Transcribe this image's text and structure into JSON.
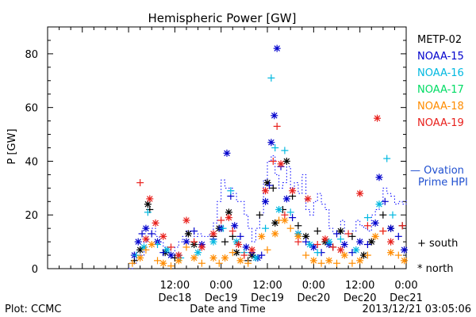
{
  "chart_data": {
    "type": "scatter",
    "title": "Hemispheric Power [GW]",
    "ylabel": "P [GW]",
    "xlabel": "Date and Time",
    "ylim": [
      0,
      90
    ],
    "yticks": [
      0,
      20,
      40,
      60,
      80
    ],
    "x_unit": "hours since 2013-12-17 00:00 UT",
    "xlim": [
      3,
      96
    ],
    "xticks": [
      {
        "x": 36,
        "time": "12:00",
        "day": "Dec18"
      },
      {
        "x": 48,
        "time": "0:00",
        "day": "Dec19"
      },
      {
        "x": 60,
        "time": "12:00",
        "day": "Dec19"
      },
      {
        "x": 72,
        "time": "0:00",
        "day": "Dec20"
      },
      {
        "x": 84,
        "time": "12:00",
        "day": "Dec20"
      },
      {
        "x": 96,
        "time": "0:00",
        "day": "Dec21"
      }
    ],
    "grid": false,
    "legend_position": "right",
    "series": [
      {
        "name": "METP-02",
        "color": "#000000",
        "points": [
          [
            25.5,
            3,
            "s"
          ],
          [
            27,
            7,
            "n"
          ],
          [
            29,
            24,
            "n"
          ],
          [
            29.5,
            22,
            "s"
          ],
          [
            33.5,
            6,
            "n"
          ],
          [
            36,
            4,
            "s"
          ],
          [
            39.5,
            13,
            "n"
          ],
          [
            41,
            9,
            "n"
          ],
          [
            46,
            12,
            "s"
          ],
          [
            47.5,
            15,
            "n"
          ],
          [
            49,
            10,
            "s"
          ],
          [
            50,
            21,
            "n"
          ],
          [
            51,
            12,
            "s"
          ],
          [
            52,
            6,
            "n"
          ],
          [
            55,
            3,
            "s"
          ],
          [
            56,
            5,
            "n"
          ],
          [
            58,
            20,
            "s"
          ],
          [
            60,
            32,
            "n"
          ],
          [
            61.5,
            30,
            "s"
          ],
          [
            62,
            17,
            "n"
          ],
          [
            64,
            22,
            "s"
          ],
          [
            65,
            40,
            "n"
          ],
          [
            66.5,
            27,
            "s"
          ],
          [
            68,
            16,
            "s"
          ],
          [
            70,
            12,
            "n"
          ],
          [
            73,
            14,
            "s"
          ],
          [
            75,
            10,
            "n"
          ],
          [
            77,
            8,
            "s"
          ],
          [
            79,
            14,
            "n"
          ],
          [
            82,
            12,
            "s"
          ],
          [
            85,
            5,
            "n"
          ],
          [
            87,
            10,
            "n"
          ],
          [
            90,
            20,
            "s"
          ],
          [
            92,
            15,
            "n"
          ],
          [
            95,
            16,
            "s"
          ]
        ]
      },
      {
        "name": "NOAA-15",
        "color": "#0000cc",
        "points": [
          [
            25.5,
            5,
            "n"
          ],
          [
            26.5,
            10,
            "n"
          ],
          [
            27.5,
            13,
            "s"
          ],
          [
            28.5,
            15,
            "n"
          ],
          [
            30,
            13,
            "s"
          ],
          [
            31.5,
            10,
            "n"
          ],
          [
            33,
            6,
            "s"
          ],
          [
            35,
            5,
            "n"
          ],
          [
            37,
            5,
            "s"
          ],
          [
            39,
            10,
            "n"
          ],
          [
            41,
            14,
            "s"
          ],
          [
            43,
            9,
            "n"
          ],
          [
            46,
            11,
            "s"
          ],
          [
            48,
            15,
            "n"
          ],
          [
            49.5,
            43,
            "n"
          ],
          [
            50.5,
            27,
            "s"
          ],
          [
            51.5,
            16,
            "n"
          ],
          [
            53,
            12,
            "s"
          ],
          [
            54.5,
            8,
            "n"
          ],
          [
            56,
            6,
            "s"
          ],
          [
            57.5,
            4,
            "n"
          ],
          [
            58.5,
            5,
            "s"
          ],
          [
            59.5,
            25,
            "n"
          ],
          [
            60.5,
            31,
            "s"
          ],
          [
            61,
            47,
            "n"
          ],
          [
            61.8,
            57,
            "n"
          ],
          [
            62.5,
            82,
            "n"
          ],
          [
            63.5,
            38,
            "s"
          ],
          [
            65,
            26,
            "n"
          ],
          [
            66.5,
            19,
            "s"
          ],
          [
            68,
            13,
            "n"
          ],
          [
            70,
            10,
            "s"
          ],
          [
            72,
            8,
            "n"
          ],
          [
            74,
            6,
            "s"
          ],
          [
            76,
            9,
            "n"
          ],
          [
            78,
            13,
            "s"
          ],
          [
            80,
            9,
            "n"
          ],
          [
            82,
            6,
            "s"
          ],
          [
            84,
            10,
            "n"
          ],
          [
            86,
            9,
            "s"
          ],
          [
            88,
            17,
            "n"
          ],
          [
            89,
            34,
            "n"
          ],
          [
            90.5,
            25,
            "s"
          ],
          [
            92,
            15,
            "n"
          ],
          [
            94,
            12,
            "s"
          ],
          [
            95.5,
            7,
            "n"
          ]
        ]
      },
      {
        "name": "NOAA-16",
        "color": "#00b8e0",
        "points": [
          [
            26,
            5,
            "s"
          ],
          [
            28,
            8,
            "n"
          ],
          [
            29,
            21,
            "s"
          ],
          [
            31.5,
            9,
            "s"
          ],
          [
            34,
            7,
            "n"
          ],
          [
            37.5,
            4,
            "s"
          ],
          [
            42,
            6,
            "n"
          ],
          [
            46,
            10,
            "n"
          ],
          [
            48.5,
            15,
            "s"
          ],
          [
            50.5,
            29,
            "s"
          ],
          [
            52,
            10,
            "n"
          ],
          [
            54,
            6,
            "s"
          ],
          [
            57,
            4,
            "n"
          ],
          [
            59.5,
            15,
            "s"
          ],
          [
            61,
            71,
            "s"
          ],
          [
            62,
            45,
            "s"
          ],
          [
            63,
            22,
            "n"
          ],
          [
            64.5,
            44,
            "s"
          ],
          [
            66,
            21,
            "s"
          ],
          [
            68,
            13,
            "n"
          ],
          [
            71,
            9,
            "n"
          ],
          [
            73,
            6,
            "s"
          ],
          [
            76,
            10,
            "n"
          ],
          [
            79,
            11,
            "s"
          ],
          [
            83,
            7,
            "n"
          ],
          [
            86,
            19,
            "s"
          ],
          [
            89,
            24,
            "n"
          ],
          [
            91,
            41,
            "s"
          ],
          [
            92.5,
            20,
            "s"
          ]
        ]
      },
      {
        "name": "NOAA-17",
        "color": "#00dc64",
        "points": []
      },
      {
        "name": "NOAA-18",
        "color": "#ff8c00",
        "points": [
          [
            25,
            2,
            "s"
          ],
          [
            27,
            4,
            "n"
          ],
          [
            28.5,
            7,
            "s"
          ],
          [
            30,
            9,
            "n"
          ],
          [
            31.5,
            3,
            "s"
          ],
          [
            33,
            2,
            "n"
          ],
          [
            35,
            1,
            "s"
          ],
          [
            37,
            3,
            "n"
          ],
          [
            39,
            8,
            "s"
          ],
          [
            41,
            4,
            "n"
          ],
          [
            43,
            2,
            "s"
          ],
          [
            46,
            4,
            "n"
          ],
          [
            47.5,
            2,
            "s"
          ],
          [
            49,
            4,
            "n"
          ],
          [
            51,
            6,
            "s"
          ],
          [
            53,
            3,
            "n"
          ],
          [
            55,
            2,
            "s"
          ],
          [
            58.5,
            12,
            "n"
          ],
          [
            60,
            7,
            "s"
          ],
          [
            62,
            13,
            "n"
          ],
          [
            63,
            18,
            "s"
          ],
          [
            64.5,
            18,
            "n"
          ],
          [
            66,
            15,
            "s"
          ],
          [
            68,
            12,
            "n"
          ],
          [
            70,
            5,
            "s"
          ],
          [
            72,
            3,
            "n"
          ],
          [
            74,
            2,
            "s"
          ],
          [
            76,
            3,
            "n"
          ],
          [
            78,
            2,
            "s"
          ],
          [
            80,
            5,
            "n"
          ],
          [
            82,
            2,
            "s"
          ],
          [
            84,
            3,
            "n"
          ],
          [
            86,
            5,
            "s"
          ],
          [
            88,
            12,
            "n"
          ],
          [
            90,
            14,
            "s"
          ],
          [
            92,
            6,
            "n"
          ],
          [
            94,
            5,
            "s"
          ],
          [
            95.5,
            3,
            "n"
          ]
        ]
      },
      {
        "name": "NOAA-19",
        "color": "#e8201c",
        "points": [
          [
            27,
            32,
            "s"
          ],
          [
            28.5,
            11,
            "n"
          ],
          [
            29.5,
            26,
            "n"
          ],
          [
            31,
            17,
            "n"
          ],
          [
            33,
            12,
            "n"
          ],
          [
            35,
            8,
            "s"
          ],
          [
            37,
            5,
            "n"
          ],
          [
            39,
            18,
            "n"
          ],
          [
            41,
            10,
            "s"
          ],
          [
            43,
            8,
            "n"
          ],
          [
            46,
            13,
            "n"
          ],
          [
            48,
            18,
            "s"
          ],
          [
            50,
            19,
            "n"
          ],
          [
            51,
            14,
            "s"
          ],
          [
            52.5,
            9,
            "n"
          ],
          [
            54,
            5,
            "s"
          ],
          [
            56,
            7,
            "n"
          ],
          [
            59.5,
            29,
            "n"
          ],
          [
            61.5,
            40,
            "s"
          ],
          [
            62.5,
            53,
            "s"
          ],
          [
            63.5,
            39,
            "n"
          ],
          [
            64.5,
            20,
            "s"
          ],
          [
            66.5,
            29,
            "n"
          ],
          [
            68,
            10,
            "s"
          ],
          [
            70.5,
            26,
            "n"
          ],
          [
            73,
            9,
            "s"
          ],
          [
            75,
            11,
            "n"
          ],
          [
            77,
            8,
            "s"
          ],
          [
            79,
            7,
            "n"
          ],
          [
            81,
            13,
            "s"
          ],
          [
            84,
            28,
            "n"
          ],
          [
            86,
            16,
            "s"
          ],
          [
            88.5,
            56,
            "n"
          ],
          [
            90,
            14,
            "s"
          ],
          [
            92,
            10,
            "n"
          ],
          [
            95,
            16,
            "s"
          ]
        ]
      }
    ],
    "ovation": {
      "name": "Ovation Prime HPI",
      "color": "#0000ff",
      "steps": [
        [
          24,
          0
        ],
        [
          25,
          2
        ],
        [
          26,
          4
        ],
        [
          27,
          5
        ],
        [
          28,
          10
        ],
        [
          29,
          13
        ],
        [
          30,
          15
        ],
        [
          31,
          12
        ],
        [
          32,
          10
        ],
        [
          33,
          8
        ],
        [
          34,
          6
        ],
        [
          35,
          5
        ],
        [
          36,
          8
        ],
        [
          37,
          10
        ],
        [
          38,
          12
        ],
        [
          39,
          14
        ],
        [
          40,
          14
        ],
        [
          41,
          12
        ],
        [
          42,
          13
        ],
        [
          43,
          12
        ],
        [
          44,
          12
        ],
        [
          45,
          13
        ],
        [
          46,
          17
        ],
        [
          47,
          25
        ],
        [
          48,
          33
        ],
        [
          49,
          30
        ],
        [
          50,
          30
        ],
        [
          51,
          28
        ],
        [
          52,
          25
        ],
        [
          53,
          25
        ],
        [
          54,
          20
        ],
        [
          55,
          15
        ],
        [
          56,
          10
        ],
        [
          57,
          15
        ],
        [
          58,
          20
        ],
        [
          59,
          33
        ],
        [
          60,
          40
        ],
        [
          61,
          42
        ],
        [
          62,
          35
        ],
        [
          63,
          30
        ],
        [
          64,
          32
        ],
        [
          65,
          38
        ],
        [
          66,
          30
        ],
        [
          67,
          32
        ],
        [
          68,
          28
        ],
        [
          69,
          35
        ],
        [
          70,
          22
        ],
        [
          71,
          20
        ],
        [
          72,
          25
        ],
        [
          73,
          28
        ],
        [
          74,
          24
        ],
        [
          75,
          22
        ],
        [
          76,
          15
        ],
        [
          77,
          13
        ],
        [
          78,
          14
        ],
        [
          79,
          18
        ],
        [
          80,
          13
        ],
        [
          81,
          12
        ],
        [
          82,
          14
        ],
        [
          83,
          18
        ],
        [
          84,
          16
        ],
        [
          85,
          15
        ],
        [
          86,
          14
        ],
        [
          87,
          20
        ],
        [
          88,
          22
        ],
        [
          89,
          24
        ],
        [
          90,
          30
        ],
        [
          91,
          28
        ],
        [
          92,
          27
        ],
        [
          93,
          24
        ],
        [
          94,
          25
        ],
        [
          95,
          24
        ],
        [
          96,
          26
        ],
        [
          97,
          26
        ]
      ]
    },
    "legend": {
      "ovation_label": "— Ovation Prime HPI",
      "south_label": "+ south",
      "north_label": "* north"
    }
  },
  "footer": {
    "plot_credit": "Plot: CCMC",
    "timestamp": "2013/12/21  03:05:06"
  }
}
